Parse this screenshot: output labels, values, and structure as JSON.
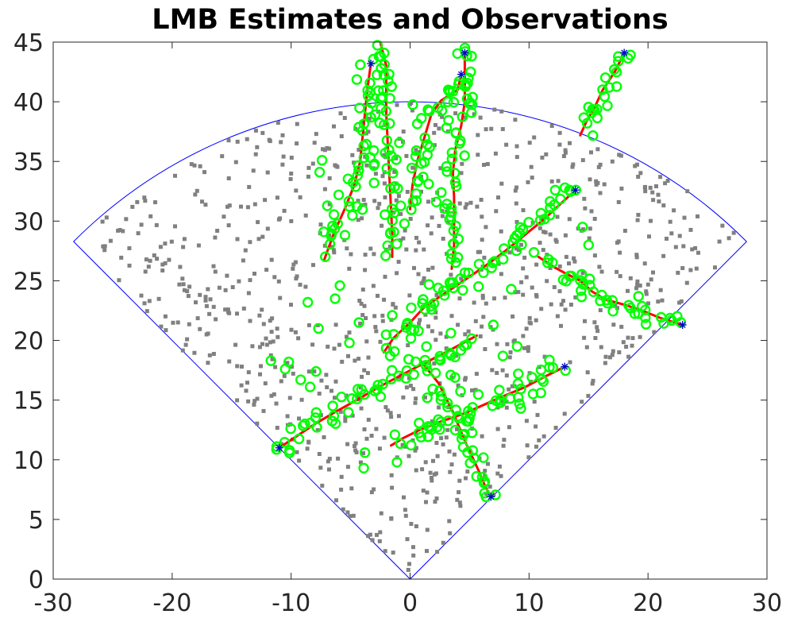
{
  "chart_data": {
    "type": "scatter",
    "title": "LMB Estimates and Observations",
    "xlabel": "",
    "ylabel": "",
    "xlim": [
      -30,
      30
    ],
    "ylim": [
      0,
      45
    ],
    "xticks": [
      "-30",
      "-20",
      "-10",
      "0",
      "10",
      "20",
      "30"
    ],
    "yticks": [
      "0",
      "5",
      "10",
      "15",
      "20",
      "25",
      "30",
      "35",
      "40",
      "45"
    ],
    "grid": false,
    "legend": "none",
    "colors": {
      "sensor_fov": "#0000ff",
      "clutter": "#808080",
      "estimates": "#00ff00",
      "truth_tracks": "#ff0000",
      "start_markers": "#0000cc",
      "axes": "#262626"
    },
    "sensor_fov": {
      "apex": [
        0,
        0
      ],
      "radius": 40,
      "half_angle_deg": 45
    },
    "truth_tracks": [
      {
        "points": [
          [
            -3.3,
            43.2
          ],
          [
            -3.6,
            41
          ],
          [
            -3.8,
            39
          ],
          [
            -4.0,
            37
          ],
          [
            -4.2,
            35
          ],
          [
            -4.7,
            33
          ],
          [
            -5.5,
            31
          ],
          [
            -6.4,
            29
          ],
          [
            -7.2,
            26.8
          ]
        ]
      },
      {
        "points": [
          [
            -2.5,
            45
          ],
          [
            -2.0,
            43
          ],
          [
            -2.0,
            41
          ],
          [
            -2.0,
            39
          ],
          [
            -1.9,
            37
          ],
          [
            -1.8,
            35
          ],
          [
            -1.7,
            33
          ],
          [
            -1.6,
            31
          ],
          [
            -1.5,
            29
          ],
          [
            -1.5,
            27
          ]
        ]
      },
      {
        "points": [
          [
            4.6,
            44.1
          ],
          [
            4.6,
            42
          ],
          [
            4.6,
            40
          ],
          [
            4.3,
            38
          ],
          [
            3.8,
            36
          ],
          [
            3.6,
            34
          ],
          [
            3.7,
            32
          ],
          [
            3.7,
            30
          ],
          [
            3.7,
            28
          ],
          [
            3.5,
            26
          ]
        ]
      },
      {
        "points": [
          [
            4.3,
            42.3
          ],
          [
            4.0,
            41
          ],
          [
            2.6,
            40.1
          ],
          [
            1.8,
            39
          ],
          [
            1.2,
            37
          ],
          [
            0.6,
            35
          ],
          [
            0.2,
            33
          ],
          [
            0.0,
            31
          ]
        ]
      },
      {
        "points": [
          [
            18.0,
            44.1
          ],
          [
            17.2,
            42.5
          ],
          [
            16.2,
            41
          ],
          [
            15.5,
            39.5
          ],
          [
            14.8,
            38.3
          ],
          [
            14.3,
            37.2
          ]
        ]
      },
      {
        "points": [
          [
            13.9,
            32.6
          ],
          [
            12.6,
            31.4
          ],
          [
            11.2,
            30.1
          ],
          [
            9.6,
            28.8
          ],
          [
            8.0,
            27.5
          ],
          [
            6.4,
            26.3
          ],
          [
            4.8,
            25.2
          ],
          [
            3.0,
            24.0
          ],
          [
            1.2,
            22.8
          ],
          [
            0.0,
            21.5
          ],
          [
            -1.4,
            20.2
          ],
          [
            -2.2,
            19.0
          ]
        ]
      },
      {
        "points": [
          [
            22.9,
            21.3
          ],
          [
            21.0,
            21.9
          ],
          [
            19.5,
            22.5
          ],
          [
            18.0,
            23.0
          ],
          [
            16.5,
            23.4
          ],
          [
            15.3,
            24.1
          ],
          [
            14.3,
            25.0
          ],
          [
            13.1,
            25.6
          ],
          [
            12.0,
            26.2
          ],
          [
            10.8,
            27.0
          ]
        ]
      },
      {
        "points": [
          [
            13.0,
            17.8
          ],
          [
            11.4,
            17.0
          ],
          [
            9.7,
            16.1
          ],
          [
            8.0,
            15.4
          ],
          [
            6.4,
            14.7
          ],
          [
            4.6,
            13.9
          ],
          [
            2.6,
            13.2
          ],
          [
            0.8,
            12.5
          ],
          [
            -0.6,
            11.8
          ],
          [
            -1.6,
            11.2
          ]
        ]
      },
      {
        "points": [
          [
            -11.0,
            11.0
          ],
          [
            -9.5,
            12.0
          ],
          [
            -8.0,
            13.0
          ],
          [
            -6.3,
            14.0
          ],
          [
            -4.5,
            15.0
          ],
          [
            -2.6,
            16.1
          ],
          [
            -0.9,
            17.0
          ],
          [
            0.8,
            17.9
          ],
          [
            2.6,
            18.8
          ],
          [
            4.3,
            19.7
          ],
          [
            5.6,
            20.4
          ]
        ]
      },
      {
        "points": [
          [
            6.8,
            6.9
          ],
          [
            6.3,
            7.8
          ],
          [
            5.8,
            9.0
          ],
          [
            5.2,
            10.3
          ],
          [
            4.6,
            11.6
          ],
          [
            4.1,
            12.8
          ],
          [
            3.6,
            14.0
          ],
          [
            3.0,
            15.2
          ],
          [
            2.4,
            16.4
          ],
          [
            1.6,
            17.4
          ],
          [
            0.8,
            18.4
          ]
        ]
      }
    ],
    "start_markers": [
      [
        -3.3,
        43.2
      ],
      [
        4.6,
        44.1
      ],
      [
        4.3,
        42.3
      ],
      [
        18.0,
        44.1
      ],
      [
        13.9,
        32.6
      ],
      [
        22.9,
        21.3
      ],
      [
        13.0,
        17.8
      ],
      [
        -11.0,
        11.0
      ],
      [
        6.8,
        6.9
      ]
    ],
    "estimates": {
      "symbol": "circle",
      "jitter": 0.55,
      "min_spacing": 0.38,
      "notable_points": [
        [
          -11.7,
          18.3
        ],
        [
          -10.5,
          17.6
        ],
        [
          -10.2,
          18.2
        ],
        [
          -8.6,
          23.2
        ],
        [
          -7.7,
          21.0
        ],
        [
          -9.2,
          16.7
        ],
        [
          -8.4,
          16.1
        ],
        [
          -7.9,
          17.4
        ],
        [
          -6.3,
          23.5
        ],
        [
          -5.9,
          24.6
        ],
        [
          -5.1,
          19.8
        ],
        [
          -4.3,
          21.5
        ],
        [
          9.2,
          29.0
        ],
        [
          19.2,
          23.7
        ],
        [
          8.5,
          24.3
        ],
        [
          9.1,
          17.2
        ],
        [
          9.0,
          19.5
        ],
        [
          9.2,
          14.7
        ],
        [
          -3.9,
          9.3
        ],
        [
          -3.8,
          10.6
        ],
        [
          -1.1,
          9.8
        ],
        [
          -7.4,
          35.1
        ],
        [
          -7.6,
          34.1
        ],
        [
          -6.0,
          32.2
        ],
        [
          2.2,
          31.6
        ],
        [
          1.1,
          33.7
        ],
        [
          15.0,
          28.0
        ],
        [
          14.5,
          29.5
        ],
        [
          12.2,
          32.6
        ],
        [
          2.0,
          23.1
        ],
        [
          -1.5,
          22.1
        ],
        [
          1.8,
          22.6
        ],
        [
          7.0,
          21.3
        ],
        [
          7.8,
          18.7
        ],
        [
          0.7,
          20.8
        ]
      ]
    },
    "clutter": {
      "count": 900,
      "distribution": "uniform within the sensor sector"
    }
  }
}
